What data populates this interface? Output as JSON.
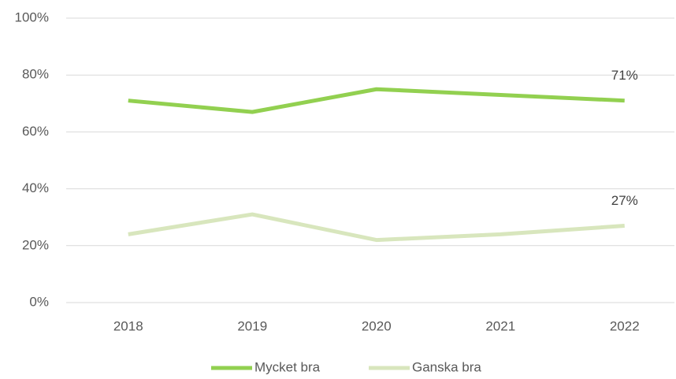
{
  "chart_data": {
    "type": "line",
    "categories": [
      "2018",
      "2019",
      "2020",
      "2021",
      "2022"
    ],
    "series": [
      {
        "name": "Mycket bra",
        "color": "#92d050",
        "values": [
          71,
          67,
          75,
          73,
          71
        ],
        "value_labels": [
          null,
          null,
          null,
          null,
          "71%"
        ]
      },
      {
        "name": "Ganska bra",
        "color": "#d8e6bd",
        "values": [
          24,
          31,
          22,
          24,
          27
        ],
        "value_labels": [
          null,
          null,
          null,
          null,
          "27%"
        ]
      }
    ],
    "ylim": [
      0,
      100
    ],
    "yticks": [
      {
        "value": 0,
        "label": "0%"
      },
      {
        "value": 20,
        "label": "20%"
      },
      {
        "value": 40,
        "label": "40%"
      },
      {
        "value": 60,
        "label": "60%"
      },
      {
        "value": 80,
        "label": "80%"
      },
      {
        "value": 100,
        "label": "100%"
      }
    ],
    "grid": true,
    "legend": "bottom"
  }
}
